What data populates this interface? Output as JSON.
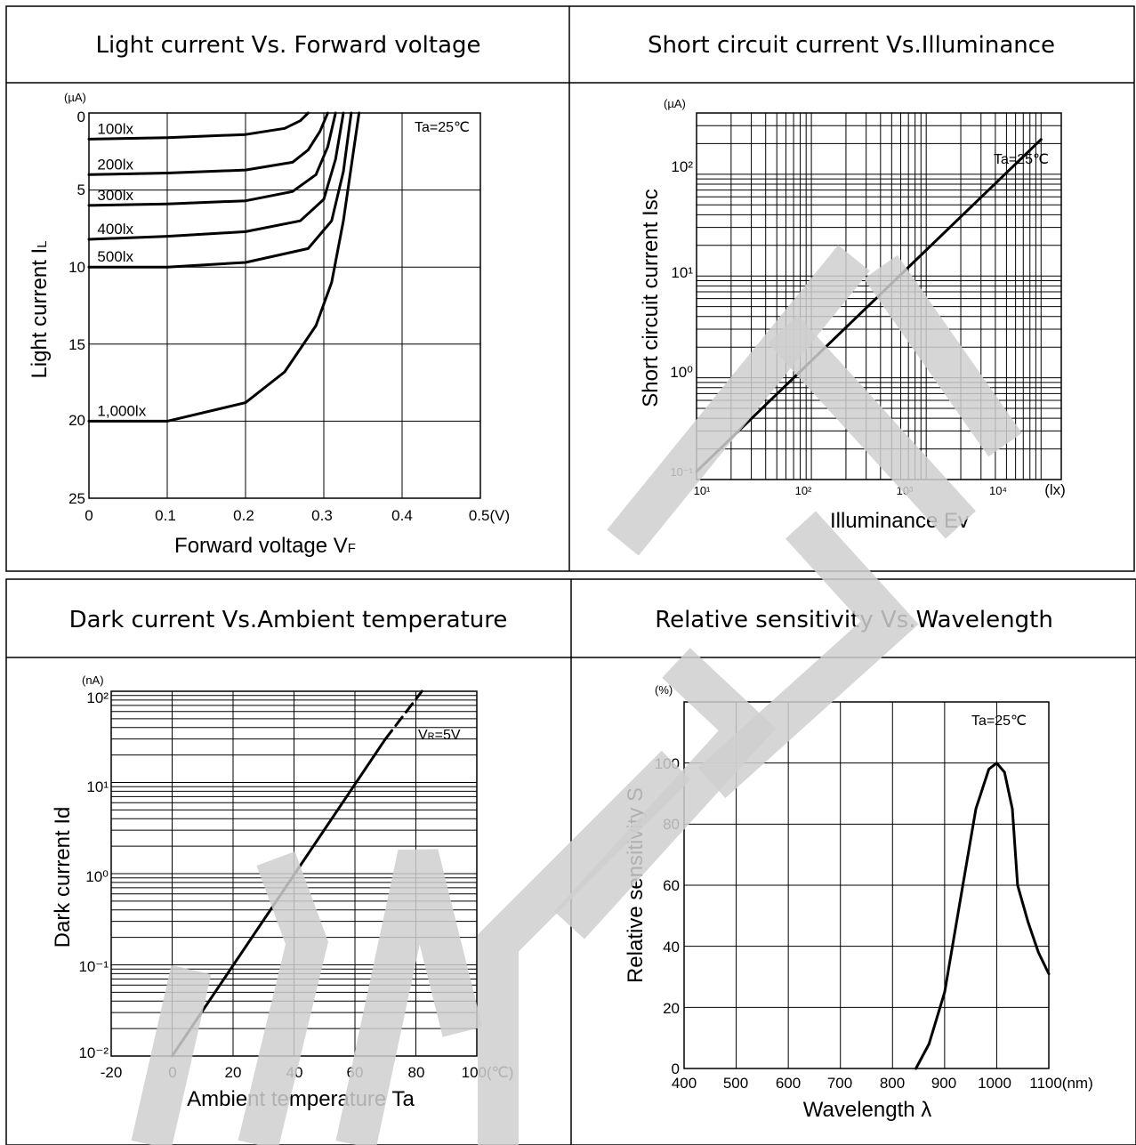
{
  "panels": [
    {
      "title": "Light current Vs. Forward voltage",
      "unit_top": "(µA)",
      "note": "Ta=25℃",
      "x_ticks": [
        "0",
        "0.1",
        "0.2",
        "0.3",
        "0.4",
        "0.5(V)"
      ],
      "y_ticks": [
        "0",
        "5",
        "10",
        "15",
        "20",
        "25"
      ],
      "xlabel": "Forward voltage   V",
      "xlabel_sub": "F",
      "ylabel": "Light current   I",
      "ylabel_sub": "L"
    },
    {
      "title": "Short circuit current Vs.Illuminance",
      "unit_top": "(µA)",
      "note": "Ta=25℃",
      "x_ticks": [
        "10¹",
        "10²",
        "10³",
        "10⁴",
        "(lx)"
      ],
      "y_ticks": [
        "10²",
        "10¹",
        "10⁰",
        "10⁻¹"
      ],
      "xlabel": "Illuminance   Ev",
      "ylabel": "Short circuit current   Isc"
    },
    {
      "title": "Dark current Vs.Ambient temperature",
      "unit_top": "(nA)",
      "note": "V",
      "note_sub": "R",
      "note_tail": "=5V",
      "x_ticks": [
        "-20",
        "0",
        "20",
        "40",
        "60",
        "80",
        "100(℃)"
      ],
      "y_ticks": [
        "10²",
        "10¹",
        "10⁰",
        "10⁻¹",
        "10⁻²"
      ],
      "xlabel": "Ambient temperature   Ta",
      "ylabel": "Dark current   Id"
    },
    {
      "title": "Relative sensitivity Vs.Wavelength",
      "unit_top": "(%)",
      "note": "Ta=25℃",
      "x_ticks": [
        "400",
        "500",
        "600",
        "700",
        "800",
        "900",
        "1000",
        "1100(nm)"
      ],
      "y_ticks": [
        "100",
        "80",
        "60",
        "40",
        "20",
        "0"
      ],
      "xlabel": "Wavelength   λ",
      "ylabel": "Relative sensitivity   S"
    }
  ],
  "chart_data": [
    {
      "type": "line",
      "title": "Light current Vs. Forward voltage",
      "xlabel": "Forward voltage VF",
      "ylabel": "Light current IL",
      "x_unit": "V",
      "y_unit": "µA",
      "xlim": [
        0,
        0.5
      ],
      "ylim": [
        0,
        25
      ],
      "y_inverted": true,
      "grid": true,
      "annotation": "Ta=25℃",
      "series": [
        {
          "name": "100lx",
          "x": [
            0,
            0.1,
            0.2,
            0.25,
            0.27,
            0.28
          ],
          "y": [
            1.7,
            1.6,
            1.4,
            1.0,
            0.5,
            0
          ]
        },
        {
          "name": "200lx",
          "x": [
            0,
            0.1,
            0.2,
            0.26,
            0.28,
            0.295,
            0.305
          ],
          "y": [
            4.0,
            3.9,
            3.7,
            3.2,
            2.4,
            1.2,
            0
          ]
        },
        {
          "name": "300lx",
          "x": [
            0,
            0.1,
            0.2,
            0.26,
            0.29,
            0.305,
            0.315
          ],
          "y": [
            6.0,
            5.9,
            5.7,
            5.1,
            4.0,
            2.2,
            0
          ]
        },
        {
          "name": "400lx",
          "x": [
            0,
            0.1,
            0.2,
            0.27,
            0.3,
            0.315,
            0.325
          ],
          "y": [
            8.2,
            8.0,
            7.7,
            7.0,
            5.6,
            3.0,
            0
          ]
        },
        {
          "name": "500lx",
          "x": [
            0,
            0.1,
            0.2,
            0.28,
            0.31,
            0.325,
            0.335
          ],
          "y": [
            10.0,
            10.0,
            9.7,
            8.8,
            7.0,
            3.8,
            0
          ]
        },
        {
          "name": "1,000lx",
          "x": [
            0,
            0.1,
            0.2,
            0.25,
            0.29,
            0.31,
            0.325,
            0.335,
            0.345
          ],
          "y": [
            20.0,
            20.0,
            18.8,
            16.8,
            13.8,
            11.0,
            7.0,
            3.5,
            0
          ]
        }
      ]
    },
    {
      "type": "line",
      "title": "Short circuit current Vs.Illuminance",
      "xlabel": "Illuminance Ev",
      "ylabel": "Short circuit current Isc",
      "x_unit": "lx",
      "y_unit": "µA",
      "x_scale": "log",
      "y_scale": "log",
      "xlim": [
        10,
        15000
      ],
      "ylim": [
        0.1,
        400
      ],
      "grid": true,
      "annotation": "Ta=25℃",
      "series": [
        {
          "x": [
            10,
            10000
          ],
          "y": [
            0.12,
            220
          ]
        }
      ]
    },
    {
      "type": "line",
      "title": "Dark current Vs.Ambient temperature",
      "xlabel": "Ambient temperature Ta",
      "ylabel": "Dark current Id",
      "x_unit": "℃",
      "y_unit": "nA",
      "y_scale": "log",
      "xlim": [
        -20,
        100
      ],
      "ylim": [
        0.01,
        100
      ],
      "grid": true,
      "annotation": "VR=5V",
      "series": [
        {
          "style": "solid",
          "x": [
            0,
            70
          ],
          "y": [
            0.01,
            30
          ]
        },
        {
          "style": "dashed",
          "x": [
            70,
            82
          ],
          "y": [
            30,
            100
          ]
        }
      ]
    },
    {
      "type": "line",
      "title": "Relative sensitivity Vs.Wavelength",
      "xlabel": "Wavelength λ",
      "ylabel": "Relative sensitivity S",
      "x_unit": "nm",
      "y_unit": "%",
      "xlim": [
        400,
        1100
      ],
      "ylim": [
        0,
        120
      ],
      "grid": true,
      "annotation": "Ta=25℃",
      "series": [
        {
          "x": [
            845,
            870,
            900,
            930,
            960,
            985,
            1000,
            1015,
            1030,
            1040,
            1060,
            1080,
            1100
          ],
          "y": [
            0,
            8,
            25,
            55,
            85,
            98,
            100,
            97,
            85,
            60,
            48,
            38,
            31
          ]
        }
      ]
    }
  ]
}
